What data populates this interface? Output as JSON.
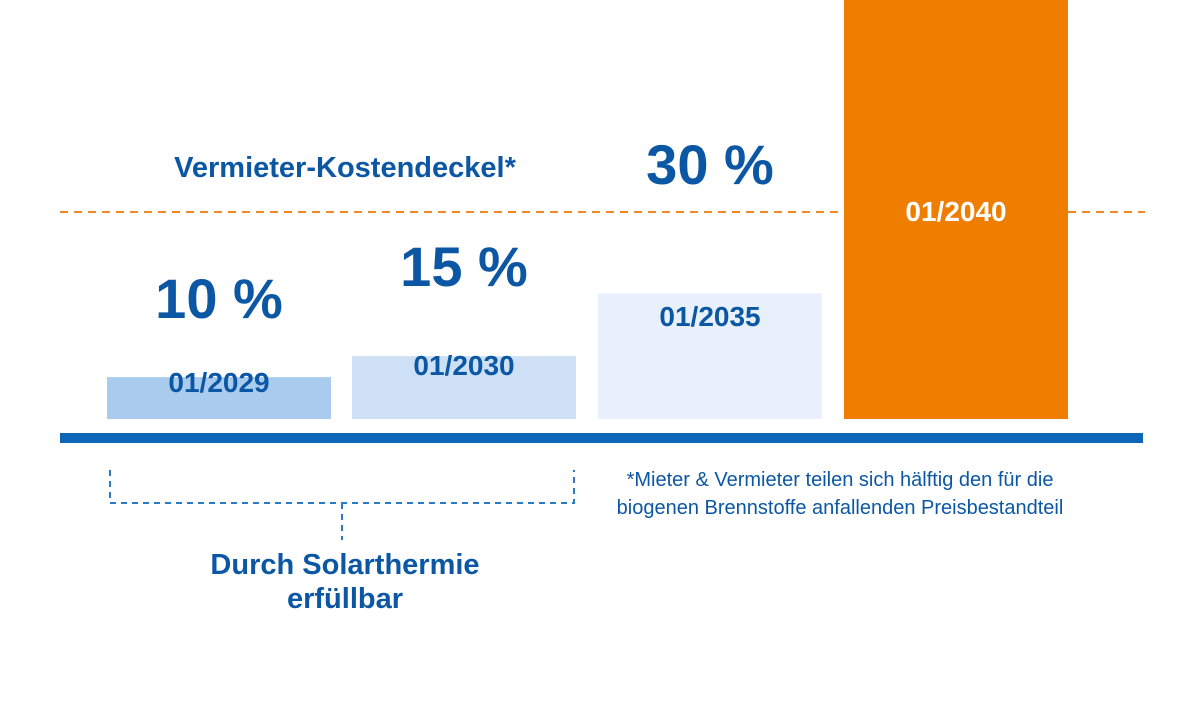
{
  "cap": {
    "label": "Vermieter-Kostendeckel*"
  },
  "solar_note": {
    "label": "Durch Solarthermie erfüllbar"
  },
  "footnote": {
    "text": "*Mieter & Vermieter teilen sich hälftig den für die biogenen Brennstoffe anfallenden Preisbestandteil"
  },
  "colors": {
    "text": "#0c57a4",
    "baseline": "#0c66b8",
    "cap_line": "#f08a24",
    "bar_2029": "#a9ccee",
    "bar_2030": "#cde0f5",
    "bar_2035": "#e8f1fb",
    "bar_2040": "#ef7d00",
    "bracket": "#2a7bc4"
  },
  "chart_data": {
    "type": "bar",
    "categories": [
      "01/2029",
      "01/2030",
      "01/2035",
      "01/2040"
    ],
    "values": [
      10,
      15,
      30,
      100
    ],
    "value_labels": [
      "10 %",
      "15 %",
      "30 %",
      ""
    ],
    "value_unit": "%",
    "cap_value": 30,
    "ylim": [
      0,
      100
    ]
  }
}
